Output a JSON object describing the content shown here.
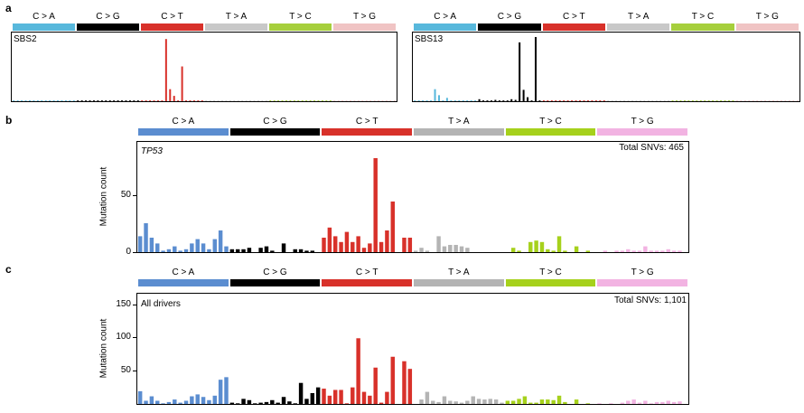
{
  "panels": {
    "a": "a",
    "b": "b",
    "c": "c"
  },
  "categories": [
    "C > A",
    "C > G",
    "C > T",
    "T > A",
    "T > C",
    "T > G"
  ],
  "small_categories": [
    "C > A",
    "C > G",
    "C > T",
    "T > A",
    "T > C",
    "T > G"
  ],
  "colors": {
    "small": [
      "#58b8dc",
      "#000000",
      "#d8312a",
      "#c8c8c8",
      "#a6cf3c",
      "#f0c4c4"
    ],
    "large": [
      "#5b8dd0",
      "#000000",
      "#d8312a",
      "#b4b4b4",
      "#a6d11c",
      "#f2b3e2"
    ]
  },
  "panel_a_left": {
    "name": "SBS2"
  },
  "panel_a_right": {
    "name": "SBS13"
  },
  "panel_b": {
    "gene": "TP53",
    "total": "Total SNVs: 465",
    "ylabel": "Mutation count",
    "yticks": [
      "0",
      "50"
    ]
  },
  "panel_c": {
    "label": "All drivers",
    "total": "Total SNVs: 1,101",
    "ylabel": "Mutation count",
    "yticks": [
      "50",
      "100",
      "150"
    ]
  },
  "chart_data": [
    {
      "type": "bar",
      "title": "SBS2",
      "groups": [
        "C > A",
        "C > G",
        "C > T",
        "T > A",
        "T > C",
        "T > G"
      ],
      "bars_per_group": 16,
      "ylim": [
        0,
        1
      ],
      "values": [
        0.01,
        0.01,
        0.01,
        0.01,
        0.01,
        0.01,
        0.01,
        0.01,
        0.01,
        0.01,
        0.01,
        0.01,
        0.01,
        0.01,
        0.01,
        0.01,
        0.01,
        0.01,
        0.01,
        0.01,
        0.01,
        0.01,
        0.01,
        0.01,
        0.01,
        0.01,
        0.01,
        0.01,
        0.01,
        0.01,
        0.01,
        0.01,
        0.01,
        0.01,
        0.01,
        0.01,
        0.01,
        0.01,
        0.01,
        0.01,
        0.01,
        0.01,
        0.01,
        0.01,
        0.01,
        0.01,
        0.01,
        0.01,
        0.01,
        0.01,
        0.01,
        0.01,
        0.01,
        0.01,
        0.01,
        0.01,
        0.01,
        0.01,
        0.01,
        0.01,
        0.01,
        0.01,
        0.01,
        0.01,
        0.01,
        0.01,
        0.01,
        0.01,
        0.01,
        0.01,
        0.01,
        0.01,
        0.01,
        0.01,
        0.01,
        0.01,
        0.01,
        0.01,
        0.01,
        0.01,
        0.01,
        0.01,
        0.01,
        0.01,
        0.01,
        0.01,
        0.01,
        0.01,
        0.01,
        0.01,
        0.01,
        0.01,
        0.01,
        0.01,
        0.01,
        0.01
      ],
      "overrides": [
        [
          38,
          0.93
        ],
        [
          39,
          0.18
        ],
        [
          40,
          0.08
        ],
        [
          42,
          0.52
        ]
      ]
    },
    {
      "type": "bar",
      "title": "SBS13",
      "groups": [
        "C > A",
        "C > G",
        "C > T",
        "T > A",
        "T > C",
        "T > G"
      ],
      "bars_per_group": 16,
      "ylim": [
        0,
        1
      ],
      "values": [],
      "overrides": [
        [
          5,
          0.18
        ],
        [
          6,
          0.09
        ],
        [
          8,
          0.05
        ],
        [
          16,
          0.03
        ],
        [
          20,
          0.02
        ],
        [
          24,
          0.03
        ],
        [
          25,
          0.02
        ],
        [
          26,
          0.88
        ],
        [
          27,
          0.17
        ],
        [
          28,
          0.06
        ],
        [
          30,
          0.96
        ]
      ]
    },
    {
      "type": "bar",
      "title": "TP53",
      "ylabel": "Mutation count",
      "ylim": [
        0,
        75
      ],
      "groups": [
        "C > A",
        "C > G",
        "C > T",
        "T > A",
        "T > C",
        "T > G"
      ],
      "values": [
        11,
        20,
        10,
        6,
        1,
        2,
        4,
        1,
        2,
        6,
        9,
        6,
        2,
        9,
        15,
        4,
        2,
        2,
        2,
        3,
        0,
        3,
        4,
        1,
        0,
        6,
        0,
        2,
        2,
        1,
        1,
        0,
        10,
        17,
        11,
        7,
        14,
        7,
        11,
        3,
        6,
        65,
        7,
        15,
        35,
        0,
        10,
        10,
        1,
        3,
        1,
        0,
        11,
        4,
        5,
        5,
        4,
        3,
        0,
        0,
        0,
        0,
        0,
        0,
        0,
        3,
        1,
        0,
        7,
        8,
        7,
        2,
        1,
        11,
        1,
        0,
        4,
        0,
        1,
        0,
        0,
        1,
        0,
        1,
        1,
        2,
        1,
        1,
        4,
        1,
        1,
        1,
        2,
        1,
        1,
        0
      ]
    },
    {
      "type": "bar",
      "title": "All drivers",
      "ylabel": "Mutation count",
      "ylim": [
        0,
        170
      ],
      "groups": [
        "C > A",
        "C > G",
        "C > T",
        "T > A",
        "T > C",
        "T > G"
      ],
      "values": [
        20,
        5,
        12,
        5,
        1,
        3,
        7,
        2,
        5,
        12,
        15,
        11,
        6,
        13,
        38,
        42,
        2,
        1,
        8,
        6,
        1,
        2,
        3,
        6,
        2,
        11,
        4,
        1,
        33,
        8,
        17,
        26,
        24,
        13,
        22,
        22,
        1,
        26,
        103,
        19,
        13,
        57,
        2,
        19,
        74,
        0,
        67,
        55,
        0,
        7,
        19,
        5,
        3,
        12,
        5,
        4,
        2,
        5,
        12,
        8,
        7,
        8,
        7,
        2,
        5,
        5,
        8,
        12,
        2,
        2,
        7,
        7,
        6,
        13,
        3,
        0,
        7,
        0,
        1,
        0,
        1,
        0,
        1,
        0,
        2,
        5,
        7,
        2,
        5,
        1,
        3,
        3,
        5,
        3,
        4,
        0
      ]
    }
  ]
}
